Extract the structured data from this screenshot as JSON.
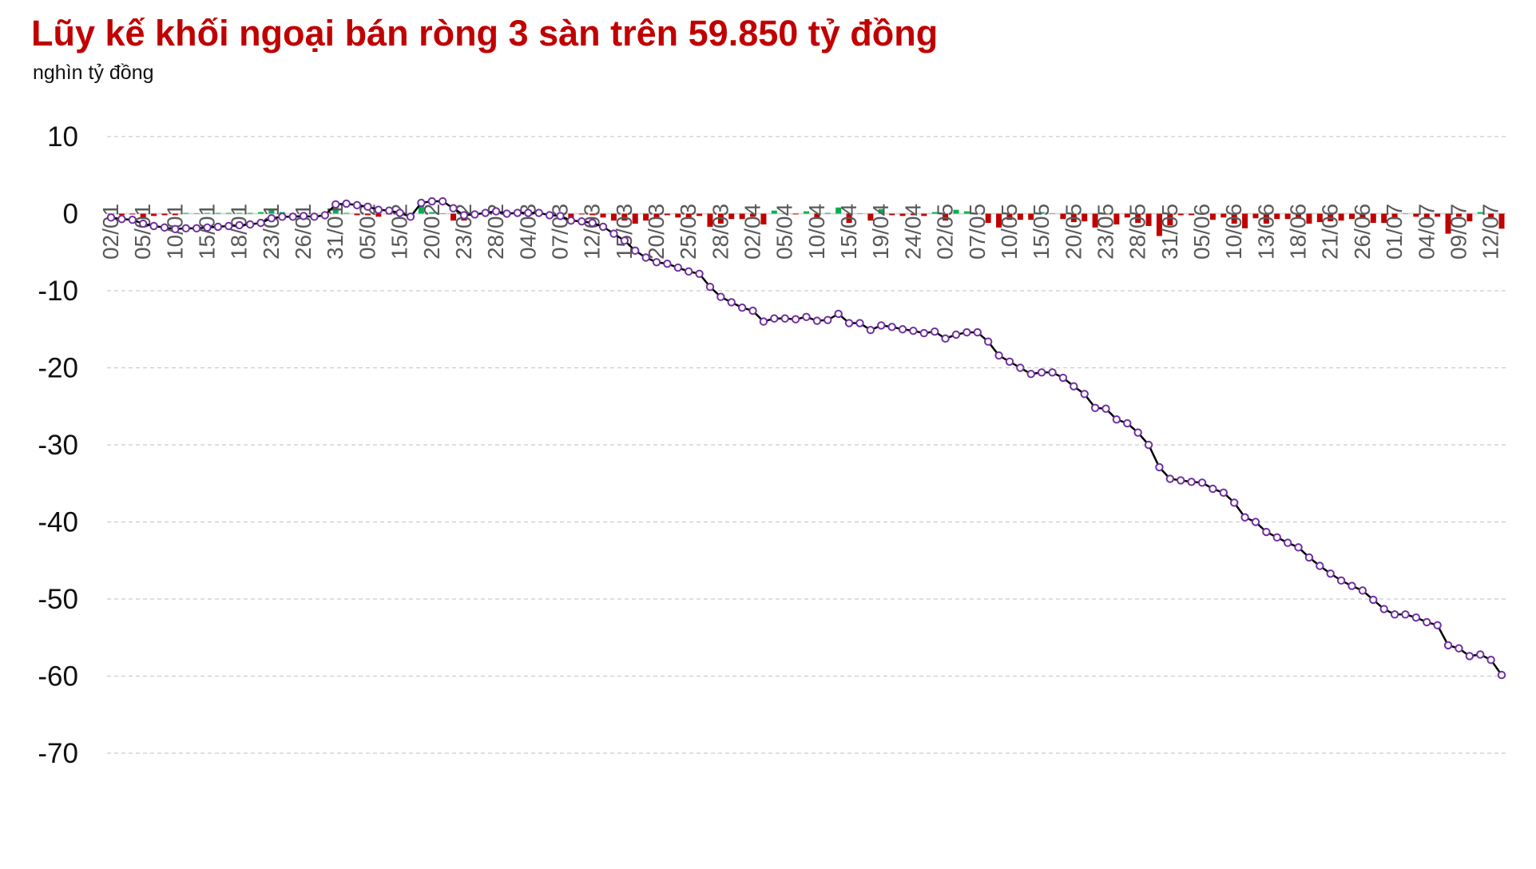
{
  "title": "Lũy kế khối ngoại bán ròng 3 sàn trên 59.850 tỷ đồng",
  "unit": "nghìn tỷ đồng",
  "colors": {
    "title": "#c00000",
    "line": "#000000",
    "marker": "#7030a0",
    "positive_bar": "#00b050",
    "negative_bar": "#c00000",
    "grid": "#cccccc",
    "axis_label": "#595959"
  },
  "chart_data": {
    "type": "bar+line",
    "ylim": [
      -70,
      10
    ],
    "yticks": [
      10,
      0,
      -10,
      -20,
      -30,
      -40,
      -50,
      -60,
      -70
    ],
    "grid": true,
    "x_tick_labels": [
      "02/01",
      "05/01",
      "10/01",
      "15/01",
      "18/01",
      "23/01",
      "26/01",
      "31/01",
      "05/02",
      "15/02",
      "20/02",
      "23/02",
      "28/02",
      "04/03",
      "07/03",
      "12/03",
      "15/03",
      "20/03",
      "25/03",
      "28/03",
      "02/04",
      "05/04",
      "10/04",
      "15/04",
      "19/04",
      "24/04",
      "02/05",
      "07/05",
      "10/05",
      "15/05",
      "20/05",
      "23/05",
      "28/05",
      "31/05",
      "05/06",
      "10/06",
      "13/06",
      "18/06",
      "21/06",
      "26/06",
      "01/07",
      "04/07",
      "09/07",
      "12/07"
    ],
    "cumulative": [
      -0.5,
      -0.7,
      -0.8,
      -1.3,
      -1.6,
      -1.8,
      -2.0,
      -1.9,
      -1.9,
      -1.8,
      -1.7,
      -1.6,
      -1.5,
      -1.4,
      -1.2,
      -0.6,
      -0.4,
      -0.4,
      -0.3,
      -0.4,
      -0.2,
      1.2,
      1.3,
      1.1,
      0.9,
      0.5,
      0.4,
      0.1,
      -0.4,
      1.4,
      1.6,
      1.6,
      0.7,
      -0.2,
      -0.1,
      0.1,
      0.3,
      0.0,
      0.1,
      0.1,
      0.1,
      -0.2,
      -0.3,
      -0.9,
      -1.0,
      -1.2,
      -1.7,
      -2.6,
      -3.5,
      -4.8,
      -5.7,
      -6.3,
      -6.5,
      -7.0,
      -7.5,
      -7.8,
      -9.5,
      -10.8,
      -11.5,
      -12.2,
      -12.6,
      -14.0,
      -13.6,
      -13.6,
      -13.7,
      -13.4,
      -13.9,
      -13.8,
      -13.0,
      -14.2,
      -14.2,
      -15.1,
      -14.5,
      -14.7,
      -15.0,
      -15.2,
      -15.5,
      -15.3,
      -16.2,
      -15.7,
      -15.4,
      -15.4,
      -16.6,
      -18.4,
      -19.2,
      -20.0,
      -20.8,
      -20.6,
      -20.6,
      -21.3,
      -22.4,
      -23.4,
      -25.2,
      -25.3,
      -26.7,
      -27.2,
      -28.4,
      -30.0,
      -32.9,
      -34.4,
      -34.6,
      -34.8,
      -34.9,
      -35.7,
      -36.2,
      -37.5,
      -39.4,
      -40.0,
      -41.3,
      -42.0,
      -42.7,
      -43.3,
      -44.6,
      -45.7,
      -46.7,
      -47.6,
      -48.3,
      -48.9,
      -50.1,
      -51.3,
      -52.0,
      -52.0,
      -52.4,
      -53.0,
      -53.4,
      -56.0,
      -56.4,
      -57.4,
      -57.2,
      -57.9,
      -59.85
    ],
    "daily": [
      -0.5,
      -0.2,
      -0.1,
      -0.5,
      -0.3,
      -0.2,
      -0.2,
      0.1,
      0,
      0.1,
      0.1,
      0.1,
      0.1,
      0.1,
      0.2,
      0.6,
      0.2,
      0,
      0.1,
      -0.1,
      0.2,
      1.4,
      0.1,
      -0.2,
      -0.2,
      -0.4,
      -0.1,
      -0.3,
      -0.5,
      1.8,
      0.2,
      0,
      -0.9,
      -0.9,
      0.1,
      0.2,
      0.2,
      -0.3,
      0.1,
      0,
      0,
      -0.3,
      -0.1,
      -0.6,
      -0.1,
      -0.2,
      -0.5,
      -0.9,
      -0.9,
      -1.3,
      -0.9,
      -0.6,
      -0.2,
      -0.5,
      -0.5,
      -0.3,
      -1.7,
      -1.3,
      -0.7,
      -0.7,
      -0.4,
      -1.4,
      0.4,
      0,
      -0.1,
      0.3,
      -0.5,
      0.1,
      0.8,
      -1.2,
      0,
      -0.9,
      0.6,
      -0.2,
      -0.3,
      -0.2,
      -0.3,
      0.2,
      -0.9,
      0.5,
      0.3,
      0,
      -1.2,
      -1.8,
      -0.8,
      -0.8,
      -0.8,
      0.2,
      0,
      -0.7,
      -1.1,
      -1.0,
      -1.8,
      -0.1,
      -1.4,
      -0.5,
      -1.2,
      -1.6,
      -2.9,
      -1.5,
      -0.2,
      -0.2,
      -0.1,
      -0.8,
      -0.5,
      -1.3,
      -1.9,
      -0.6,
      -1.3,
      -0.7,
      -0.7,
      -0.6,
      -1.3,
      -1.1,
      -1.0,
      -0.9,
      -0.7,
      -0.6,
      -1.2,
      -1.2,
      -0.7,
      0,
      -0.4,
      -0.6,
      -0.4,
      -2.6,
      -0.4,
      -1.0,
      0.2,
      -0.7,
      -1.95
    ],
    "label_every": 3
  }
}
